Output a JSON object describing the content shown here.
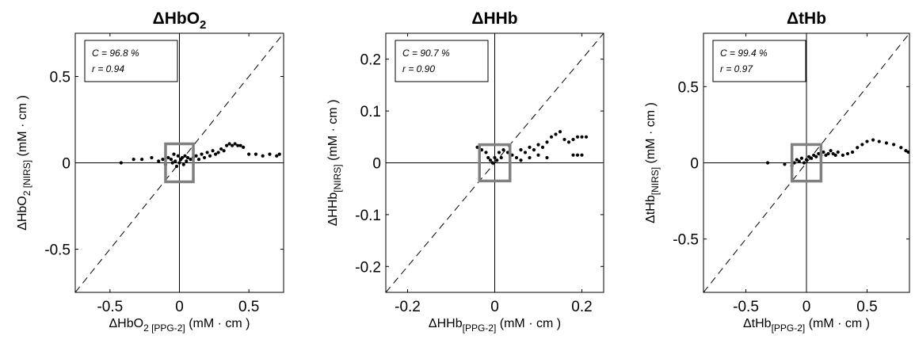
{
  "chart_data": [
    {
      "type": "scatter",
      "title": "ΔHbO",
      "title_sub": "2",
      "xlabel": {
        "main": "ΔHbO",
        "sub": "2 [PPG-2]",
        "unit": "(mM · cm )"
      },
      "ylabel": {
        "main": "ΔHbO",
        "sub": "2 [NIRS]",
        "unit": "(mM · cm )"
      },
      "xlim": [
        -0.75,
        0.75
      ],
      "ylim": [
        -0.75,
        0.75
      ],
      "xticks": [
        -0.5,
        0,
        0.5
      ],
      "xtick_labels": [
        "-0.5",
        "0",
        "0.5"
      ],
      "yticks": [
        -0.5,
        0,
        0.5
      ],
      "ytick_labels": [
        "-0.5",
        "0",
        "0.5"
      ],
      "stats": {
        "C": "C = 96.8 %",
        "r": "r = 0.94"
      },
      "highlight_box": {
        "x": [
          -0.1,
          0.1
        ],
        "y": [
          -0.11,
          0.11
        ]
      },
      "diagonal": true,
      "points": [
        [
          -0.42,
          0.0
        ],
        [
          -0.33,
          0.02
        ],
        [
          -0.27,
          0.02
        ],
        [
          -0.2,
          0.03
        ],
        [
          -0.15,
          0.01
        ],
        [
          -0.12,
          0.02
        ],
        [
          -0.1,
          -0.01
        ],
        [
          -0.08,
          0.03
        ],
        [
          -0.06,
          0.02
        ],
        [
          -0.05,
          0.0
        ],
        [
          -0.04,
          0.05
        ],
        [
          -0.03,
          0.01
        ],
        [
          -0.02,
          -0.02
        ],
        [
          -0.01,
          0.04
        ],
        [
          0.0,
          0.0
        ],
        [
          0.01,
          0.02
        ],
        [
          0.02,
          0.03
        ],
        [
          0.03,
          -0.01
        ],
        [
          0.04,
          0.04
        ],
        [
          0.05,
          0.01
        ],
        [
          0.06,
          0.03
        ],
        [
          0.08,
          0.02
        ],
        [
          0.1,
          0.03
        ],
        [
          0.12,
          0.04
        ],
        [
          0.14,
          0.02
        ],
        [
          0.16,
          0.05
        ],
        [
          0.18,
          0.03
        ],
        [
          0.2,
          0.06
        ],
        [
          0.22,
          0.04
        ],
        [
          0.24,
          0.07
        ],
        [
          0.26,
          0.05
        ],
        [
          0.28,
          0.06
        ],
        [
          0.3,
          0.08
        ],
        [
          0.32,
          0.07
        ],
        [
          0.34,
          0.1
        ],
        [
          0.36,
          0.11
        ],
        [
          0.38,
          0.1
        ],
        [
          0.4,
          0.11
        ],
        [
          0.42,
          0.1
        ],
        [
          0.44,
          0.1
        ],
        [
          0.46,
          0.09
        ],
        [
          0.5,
          0.05
        ],
        [
          0.55,
          0.05
        ],
        [
          0.6,
          0.04
        ],
        [
          0.65,
          0.05
        ],
        [
          0.7,
          0.04
        ],
        [
          0.72,
          0.05
        ]
      ]
    },
    {
      "type": "scatter",
      "title": "ΔHHb",
      "title_sub": "",
      "xlabel": {
        "main": "ΔHHb",
        "sub": "[PPG-2]",
        "unit": "(mM · cm )"
      },
      "ylabel": {
        "main": "ΔHHb",
        "sub": "[NIRS]",
        "unit": "(mM · cm )"
      },
      "xlim": [
        -0.25,
        0.25
      ],
      "ylim": [
        -0.25,
        0.25
      ],
      "xticks": [
        -0.2,
        0,
        0.2
      ],
      "xtick_labels": [
        "-0.2",
        "0",
        "0.2"
      ],
      "yticks": [
        -0.2,
        -0.1,
        0,
        0.1,
        0.2
      ],
      "ytick_labels": [
        "-0.2",
        "-0.1",
        "0",
        "0.1",
        "0.2"
      ],
      "stats": {
        "C": "C = 90.7 %",
        "r": "r = 0.90"
      },
      "highlight_box": {
        "x": [
          -0.035,
          0.035
        ],
        "y": [
          -0.035,
          0.035
        ]
      },
      "diagonal": true,
      "points": [
        [
          -0.04,
          0.03
        ],
        [
          -0.03,
          0.025
        ],
        [
          -0.02,
          0.02
        ],
        [
          -0.015,
          0.01
        ],
        [
          -0.01,
          0.005
        ],
        [
          -0.005,
          0.0
        ],
        [
          0.0,
          0.01
        ],
        [
          0.005,
          0.005
        ],
        [
          0.01,
          0.02
        ],
        [
          0.015,
          0.01
        ],
        [
          0.02,
          0.025
        ],
        [
          0.03,
          0.02
        ],
        [
          0.04,
          0.015
        ],
        [
          0.05,
          0.01
        ],
        [
          0.06,
          0.025
        ],
        [
          0.07,
          0.02
        ],
        [
          0.08,
          0.03
        ],
        [
          0.09,
          0.025
        ],
        [
          0.1,
          0.035
        ],
        [
          0.11,
          0.03
        ],
        [
          0.12,
          0.04
        ],
        [
          0.13,
          0.05
        ],
        [
          0.14,
          0.055
        ],
        [
          0.15,
          0.06
        ],
        [
          0.16,
          0.045
        ],
        [
          0.17,
          0.04
        ],
        [
          0.18,
          0.045
        ],
        [
          0.19,
          0.05
        ],
        [
          0.2,
          0.05
        ],
        [
          0.21,
          0.05
        ],
        [
          0.18,
          0.015
        ],
        [
          0.19,
          0.015
        ],
        [
          0.2,
          0.015
        ],
        [
          0.06,
          0.005
        ],
        [
          0.08,
          0.01
        ],
        [
          0.1,
          0.015
        ],
        [
          0.12,
          0.01
        ]
      ]
    },
    {
      "type": "scatter",
      "title": "ΔtHb",
      "title_sub": "",
      "xlabel": {
        "main": "ΔtHb",
        "sub": "[PPG-2]",
        "unit": "(mM · cm )"
      },
      "ylabel": {
        "main": "ΔtHb",
        "sub": "[NIRS]",
        "unit": "(mM · cm )"
      },
      "xlim": [
        -0.85,
        0.85
      ],
      "ylim": [
        -0.85,
        0.85
      ],
      "xticks": [
        -0.5,
        0,
        0.5
      ],
      "xtick_labels": [
        "-0.5",
        "0",
        "0.5"
      ],
      "yticks": [
        -0.5,
        0,
        0.5
      ],
      "ytick_labels": [
        "-0.5",
        "0",
        "0.5"
      ],
      "stats": {
        "C": "C = 99.4 %",
        "r": "r = 0.97"
      },
      "highlight_box": {
        "x": [
          -0.12,
          0.12
        ],
        "y": [
          -0.12,
          0.12
        ]
      },
      "diagonal": true,
      "points": [
        [
          -0.32,
          0.0
        ],
        [
          -0.18,
          -0.01
        ],
        [
          -0.12,
          -0.02
        ],
        [
          -0.1,
          0.0
        ],
        [
          -0.08,
          0.02
        ],
        [
          -0.06,
          0.01
        ],
        [
          -0.04,
          0.03
        ],
        [
          -0.02,
          0.0
        ],
        [
          0.0,
          0.02
        ],
        [
          0.02,
          0.04
        ],
        [
          0.04,
          0.03
        ],
        [
          0.06,
          0.05
        ],
        [
          0.08,
          0.04
        ],
        [
          0.1,
          0.06
        ],
        [
          0.12,
          0.05
        ],
        [
          0.14,
          0.07
        ],
        [
          0.16,
          0.05
        ],
        [
          0.18,
          0.06
        ],
        [
          0.2,
          0.08
        ],
        [
          0.22,
          0.06
        ],
        [
          0.24,
          0.05
        ],
        [
          0.26,
          0.07
        ],
        [
          0.3,
          0.05
        ],
        [
          0.34,
          0.06
        ],
        [
          0.38,
          0.07
        ],
        [
          0.42,
          0.1
        ],
        [
          0.46,
          0.12
        ],
        [
          0.5,
          0.14
        ],
        [
          0.55,
          0.15
        ],
        [
          0.6,
          0.14
        ],
        [
          0.66,
          0.13
        ],
        [
          0.72,
          0.12
        ],
        [
          0.78,
          0.1
        ],
        [
          0.82,
          0.08
        ],
        [
          0.84,
          0.07
        ]
      ]
    }
  ]
}
